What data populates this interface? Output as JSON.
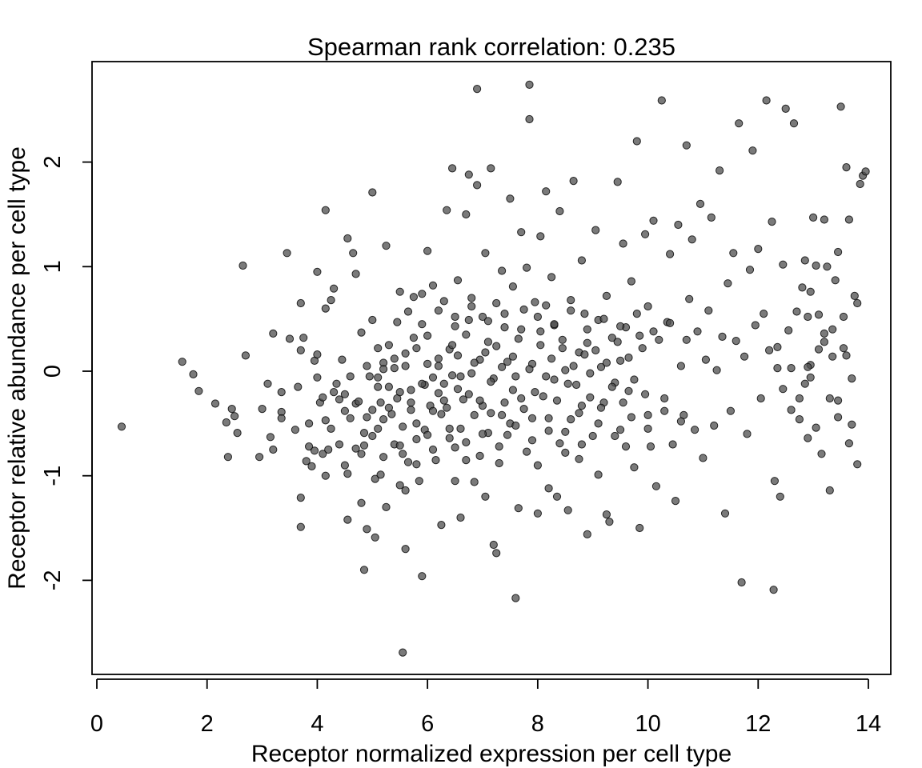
{
  "chart_data": {
    "type": "scatter",
    "title": "Spearman rank correlation: 0.235",
    "xlabel": "Receptor normalized expression per cell type",
    "ylabel": "Receptor relative abundance per cell type",
    "xlim": [
      0,
      14
    ],
    "ylim": [
      -2.75,
      2.85
    ],
    "xticks": [
      0,
      2,
      4,
      6,
      8,
      10,
      12,
      14
    ],
    "yticks": [
      -2,
      -1,
      0,
      1,
      2
    ],
    "grid": false,
    "legend": "none",
    "point_color": "#4d4d4d",
    "point_stroke": "#000000",
    "points": [
      [
        0.45,
        -0.53
      ],
      [
        1.55,
        0.09
      ],
      [
        1.75,
        -0.03
      ],
      [
        1.85,
        -0.19
      ],
      [
        2.15,
        -0.31
      ],
      [
        2.35,
        -0.49
      ],
      [
        2.38,
        -0.82
      ],
      [
        2.45,
        -0.36
      ],
      [
        2.5,
        -0.43
      ],
      [
        2.55,
        -0.59
      ],
      [
        2.65,
        1.01
      ],
      [
        2.7,
        0.15
      ],
      [
        2.95,
        -0.82
      ],
      [
        3.0,
        -0.36
      ],
      [
        3.1,
        -0.12
      ],
      [
        3.15,
        -0.63
      ],
      [
        3.2,
        0.36
      ],
      [
        3.2,
        -0.75
      ],
      [
        3.35,
        -0.39
      ],
      [
        3.35,
        -0.45
      ],
      [
        3.35,
        -0.2
      ],
      [
        3.45,
        1.13
      ],
      [
        3.5,
        0.31
      ],
      [
        3.6,
        -0.56
      ],
      [
        3.65,
        -0.15
      ],
      [
        3.7,
        0.2
      ],
      [
        3.7,
        0.65
      ],
      [
        3.7,
        -1.21
      ],
      [
        3.7,
        -1.49
      ],
      [
        3.75,
        0.32
      ],
      [
        3.8,
        -0.86
      ],
      [
        3.85,
        -0.72
      ],
      [
        3.85,
        -0.5
      ],
      [
        3.9,
        -0.91
      ],
      [
        3.95,
        0.1
      ],
      [
        3.95,
        -0.76
      ],
      [
        4.0,
        0.95
      ],
      [
        4.0,
        0.16
      ],
      [
        4.0,
        -0.06
      ],
      [
        4.05,
        -0.3
      ],
      [
        4.1,
        -0.25
      ],
      [
        4.1,
        -0.79
      ],
      [
        4.15,
        -0.47
      ],
      [
        4.15,
        0.6
      ],
      [
        4.15,
        -1.0
      ],
      [
        4.15,
        1.54
      ],
      [
        4.2,
        -0.75
      ],
      [
        4.25,
        0.68
      ],
      [
        4.3,
        0.79
      ],
      [
        4.35,
        -0.12
      ],
      [
        4.4,
        -0.27
      ],
      [
        4.4,
        -0.7
      ],
      [
        4.45,
        0.11
      ],
      [
        4.5,
        -0.22
      ],
      [
        4.5,
        -0.38
      ],
      [
        4.5,
        -0.9
      ],
      [
        4.55,
        -0.98
      ],
      [
        4.55,
        -1.42
      ],
      [
        4.55,
        1.27
      ],
      [
        4.6,
        -0.45
      ],
      [
        4.65,
        1.13
      ],
      [
        4.7,
        0.93
      ],
      [
        4.7,
        -0.31
      ],
      [
        4.7,
        -0.74
      ],
      [
        4.75,
        -0.29
      ],
      [
        4.8,
        -0.79
      ],
      [
        4.8,
        0.37
      ],
      [
        4.8,
        -1.26
      ],
      [
        4.85,
        -0.71
      ],
      [
        4.85,
        -0.59
      ],
      [
        4.85,
        -1.9
      ],
      [
        4.9,
        -1.51
      ],
      [
        4.9,
        -0.44
      ],
      [
        4.95,
        -0.05
      ],
      [
        5.0,
        0.49
      ],
      [
        5.0,
        -0.37
      ],
      [
        5.0,
        1.71
      ],
      [
        5.05,
        -1.03
      ],
      [
        5.05,
        -1.59
      ],
      [
        5.1,
        0.22
      ],
      [
        5.1,
        -0.06
      ],
      [
        5.1,
        -0.55
      ],
      [
        5.15,
        -0.99
      ],
      [
        5.15,
        -0.3
      ],
      [
        5.2,
        0.08
      ],
      [
        5.2,
        -0.46
      ],
      [
        5.2,
        -0.82
      ],
      [
        5.25,
        -1.3
      ],
      [
        5.25,
        1.2
      ],
      [
        5.3,
        0.25
      ],
      [
        5.3,
        -0.15
      ],
      [
        5.35,
        -0.41
      ],
      [
        5.4,
        -0.7
      ],
      [
        5.4,
        0.03
      ],
      [
        5.45,
        -0.26
      ],
      [
        5.45,
        0.47
      ],
      [
        5.5,
        -1.09
      ],
      [
        5.5,
        0.76
      ],
      [
        5.5,
        -0.71
      ],
      [
        5.55,
        -0.53
      ],
      [
        5.55,
        -0.79
      ],
      [
        5.55,
        -2.69
      ],
      [
        5.6,
        -1.7
      ],
      [
        5.6,
        -1.14
      ],
      [
        5.6,
        0.17
      ],
      [
        5.65,
        0.57
      ],
      [
        5.65,
        -0.87
      ],
      [
        5.7,
        -0.18
      ],
      [
        5.7,
        -0.37
      ],
      [
        5.75,
        0.71
      ],
      [
        5.75,
        0.32
      ],
      [
        5.8,
        -0.89
      ],
      [
        5.8,
        -0.5
      ],
      [
        5.85,
        -1.05
      ],
      [
        5.9,
        -1.96
      ],
      [
        5.9,
        0.74
      ],
      [
        5.95,
        -0.13
      ],
      [
        5.95,
        -0.56
      ],
      [
        6.0,
        1.15
      ],
      [
        6.0,
        0.34
      ],
      [
        6.0,
        -0.61
      ],
      [
        6.05,
        -0.33
      ],
      [
        6.1,
        -0.06
      ],
      [
        6.1,
        0.82
      ],
      [
        6.15,
        -0.85
      ],
      [
        6.2,
        0.12
      ],
      [
        6.2,
        -0.21
      ],
      [
        6.25,
        -0.41
      ],
      [
        6.25,
        -1.47
      ],
      [
        6.3,
        0.67
      ],
      [
        6.3,
        -0.28
      ],
      [
        6.35,
        1.54
      ],
      [
        6.4,
        -0.64
      ],
      [
        6.4,
        0.21
      ],
      [
        6.45,
        1.94
      ],
      [
        6.45,
        -0.04
      ],
      [
        6.5,
        -1.05
      ],
      [
        6.5,
        0.43
      ],
      [
        6.5,
        -0.73
      ],
      [
        6.55,
        0.87
      ],
      [
        6.55,
        -0.17
      ],
      [
        6.6,
        -0.55
      ],
      [
        6.6,
        -1.4
      ],
      [
        6.65,
        -0.27
      ],
      [
        6.7,
        1.5
      ],
      [
        6.7,
        -0.85
      ],
      [
        6.75,
        0.49
      ],
      [
        6.75,
        1.88
      ],
      [
        6.8,
        0.7
      ],
      [
        6.8,
        -0.02
      ],
      [
        6.85,
        -0.42
      ],
      [
        6.85,
        -1.06
      ],
      [
        6.9,
        1.78
      ],
      [
        6.9,
        2.7
      ],
      [
        6.95,
        -0.81
      ],
      [
        6.95,
        0.11
      ],
      [
        7.0,
        0.52
      ],
      [
        7.0,
        -0.33
      ],
      [
        7.05,
        1.13
      ],
      [
        7.05,
        -1.2
      ],
      [
        7.1,
        -0.59
      ],
      [
        7.1,
        0.28
      ],
      [
        7.15,
        1.94
      ],
      [
        7.15,
        -0.4
      ],
      [
        7.2,
        -0.07
      ],
      [
        7.2,
        -1.66
      ],
      [
        7.25,
        0.65
      ],
      [
        7.25,
        -1.74
      ],
      [
        7.3,
        -0.88
      ],
      [
        7.35,
        0.96
      ],
      [
        7.35,
        0.04
      ],
      [
        7.4,
        -0.3
      ],
      [
        7.4,
        0.42
      ],
      [
        7.45,
        -0.61
      ],
      [
        7.5,
        1.65
      ],
      [
        7.5,
        -0.5
      ],
      [
        7.55,
        0.14
      ],
      [
        7.55,
        0.81
      ],
      [
        7.6,
        -0.05
      ],
      [
        7.6,
        -2.17
      ],
      [
        7.65,
        -1.31
      ],
      [
        7.7,
        1.33
      ],
      [
        7.7,
        -0.26
      ],
      [
        7.75,
        0.59
      ],
      [
        7.8,
        -0.77
      ],
      [
        7.8,
        0.99
      ],
      [
        7.85,
        2.74
      ],
      [
        7.85,
        2.41
      ],
      [
        7.9,
        0.07
      ],
      [
        7.9,
        -0.45
      ],
      [
        7.95,
        0.66
      ],
      [
        8.0,
        -0.9
      ],
      [
        8.0,
        -1.36
      ],
      [
        8.05,
        1.29
      ],
      [
        8.05,
        0.25
      ],
      [
        8.1,
        -0.24
      ],
      [
        8.15,
        1.72
      ],
      [
        8.15,
        0.63
      ],
      [
        8.2,
        -0.57
      ],
      [
        8.2,
        -1.12
      ],
      [
        8.25,
        0.9
      ],
      [
        8.3,
        0.44
      ],
      [
        8.3,
        -0.08
      ],
      [
        8.35,
        -1.2
      ],
      [
        8.4,
        -0.69
      ],
      [
        8.4,
        1.53
      ],
      [
        8.45,
        0.3
      ],
      [
        8.5,
        -0.78
      ],
      [
        8.5,
        0.01
      ],
      [
        8.55,
        -1.33
      ],
      [
        8.6,
        0.68
      ],
      [
        8.6,
        -0.46
      ],
      [
        8.65,
        1.82
      ],
      [
        8.7,
        -0.13
      ],
      [
        8.75,
        0.18
      ],
      [
        8.75,
        -0.84
      ],
      [
        8.8,
        1.06
      ],
      [
        8.8,
        -0.33
      ],
      [
        8.85,
        0.55
      ],
      [
        8.9,
        -1.56
      ],
      [
        8.9,
        0.27
      ],
      [
        8.95,
        -0.02
      ],
      [
        9.0,
        -0.62
      ],
      [
        9.05,
        1.35
      ],
      [
        9.1,
        -0.99
      ],
      [
        9.1,
        0.49
      ],
      [
        9.15,
        0.04
      ],
      [
        9.2,
        -0.3
      ],
      [
        9.25,
        -1.37
      ],
      [
        9.25,
        0.72
      ],
      [
        9.3,
        -1.44
      ],
      [
        9.35,
        0.32
      ],
      [
        9.4,
        -0.11
      ],
      [
        9.45,
        1.81
      ],
      [
        9.5,
        -0.56
      ],
      [
        9.5,
        0.1
      ],
      [
        9.55,
        1.22
      ],
      [
        9.6,
        -0.72
      ],
      [
        9.6,
        0.42
      ],
      [
        9.65,
        -0.19
      ],
      [
        9.7,
        0.86
      ],
      [
        9.75,
        -0.92
      ],
      [
        9.8,
        2.2
      ],
      [
        9.85,
        -1.5
      ],
      [
        9.9,
        0.22
      ],
      [
        9.95,
        1.31
      ],
      [
        10.0,
        -0.42
      ],
      [
        10.0,
        0.62
      ],
      [
        10.05,
        -0.72
      ],
      [
        10.1,
        1.44
      ],
      [
        10.15,
        -1.1
      ],
      [
        10.2,
        0.3
      ],
      [
        10.25,
        2.59
      ],
      [
        10.3,
        -0.26
      ],
      [
        10.35,
        0.47
      ],
      [
        10.4,
        1.12
      ],
      [
        10.45,
        -0.7
      ],
      [
        10.5,
        -1.24
      ],
      [
        10.55,
        1.4
      ],
      [
        10.6,
        0.05
      ],
      [
        10.65,
        -0.42
      ],
      [
        10.7,
        2.16
      ],
      [
        10.75,
        0.69
      ],
      [
        10.8,
        1.26
      ],
      [
        10.85,
        -0.56
      ],
      [
        10.9,
        0.38
      ],
      [
        10.95,
        1.6
      ],
      [
        11.0,
        -0.83
      ],
      [
        11.05,
        0.11
      ],
      [
        11.1,
        0.58
      ],
      [
        11.15,
        1.47
      ],
      [
        11.2,
        -0.52
      ],
      [
        11.25,
        0.01
      ],
      [
        11.3,
        1.92
      ],
      [
        11.35,
        0.33
      ],
      [
        11.4,
        -1.36
      ],
      [
        11.45,
        0.84
      ],
      [
        11.5,
        -0.38
      ],
      [
        11.55,
        1.13
      ],
      [
        11.6,
        0.29
      ],
      [
        11.65,
        2.37
      ],
      [
        11.7,
        -2.02
      ],
      [
        11.75,
        0.14
      ],
      [
        11.8,
        -0.6
      ],
      [
        11.85,
        0.97
      ],
      [
        11.9,
        2.11
      ],
      [
        11.95,
        0.44
      ],
      [
        12.0,
        1.17
      ],
      [
        12.05,
        -0.26
      ],
      [
        12.1,
        0.55
      ],
      [
        12.15,
        2.59
      ],
      [
        12.2,
        0.2
      ],
      [
        12.25,
        1.43
      ],
      [
        12.3,
        -1.05
      ],
      [
        12.35,
        0.03
      ],
      [
        12.4,
        -1.2
      ],
      [
        12.45,
        1.02
      ],
      [
        12.5,
        2.51
      ],
      [
        12.55,
        0.39
      ],
      [
        12.6,
        -0.37
      ],
      [
        12.65,
        2.37
      ],
      [
        12.7,
        0.57
      ],
      [
        12.75,
        -0.26
      ],
      [
        12.8,
        0.8
      ],
      [
        12.85,
        1.06
      ],
      [
        12.9,
        0.52
      ],
      [
        12.95,
        -0.06
      ],
      [
        13.0,
        1.47
      ],
      [
        13.05,
        -0.54
      ],
      [
        13.1,
        0.54
      ],
      [
        13.15,
        -0.79
      ],
      [
        13.2,
        0.28
      ],
      [
        13.25,
        1.0
      ],
      [
        13.3,
        -1.14
      ],
      [
        13.35,
        0.14
      ],
      [
        13.4,
        0.87
      ],
      [
        13.45,
        -0.44
      ],
      [
        13.5,
        2.53
      ],
      [
        13.55,
        0.22
      ],
      [
        13.6,
        1.95
      ],
      [
        13.65,
        1.45
      ],
      [
        13.7,
        -0.51
      ],
      [
        13.75,
        0.72
      ],
      [
        13.8,
        -0.89
      ],
      [
        13.85,
        1.79
      ],
      [
        13.9,
        1.87
      ],
      [
        13.95,
        1.91
      ],
      [
        12.95,
        0.06
      ],
      [
        12.9,
        0.04
      ],
      [
        12.28,
        -2.09
      ],
      [
        12.35,
        0.23
      ],
      [
        12.45,
        -0.17
      ],
      [
        12.6,
        0.03
      ],
      [
        12.75,
        -0.46
      ],
      [
        12.85,
        -0.12
      ],
      [
        12.9,
        -0.64
      ],
      [
        13.05,
        1.01
      ],
      [
        13.2,
        0.36
      ],
      [
        13.3,
        -0.26
      ],
      [
        13.45,
        -0.28
      ],
      [
        13.55,
        0.52
      ],
      [
        13.6,
        0.15
      ],
      [
        13.65,
        -0.69
      ],
      [
        13.7,
        -0.07
      ],
      [
        13.8,
        0.65
      ],
      [
        12.95,
        0.76
      ],
      [
        13.1,
        0.21
      ],
      [
        13.2,
        1.45
      ],
      [
        13.35,
        0.4
      ],
      [
        13.45,
        1.14
      ],
      [
        6.2,
        0.05
      ],
      [
        6.3,
        -0.12
      ],
      [
        6.35,
        -0.35
      ],
      [
        6.45,
        0.25
      ],
      [
        6.55,
        0.15
      ],
      [
        6.6,
        -0.05
      ],
      [
        6.7,
        0.35
      ],
      [
        6.75,
        -0.22
      ],
      [
        6.85,
        0.08
      ],
      [
        6.95,
        -0.28
      ],
      [
        7.05,
        0.18
      ],
      [
        7.15,
        -0.1
      ],
      [
        7.25,
        0.24
      ],
      [
        7.35,
        -0.42
      ],
      [
        7.45,
        0.09
      ],
      [
        7.55,
        -0.18
      ],
      [
        7.65,
        0.31
      ],
      [
        7.75,
        -0.36
      ],
      [
        7.85,
        0.02
      ],
      [
        7.95,
        -0.2
      ],
      [
        8.05,
        0.38
      ],
      [
        8.15,
        -0.05
      ],
      [
        8.25,
        0.12
      ],
      [
        8.35,
        -0.28
      ],
      [
        8.45,
        0.22
      ],
      [
        8.55,
        -0.12
      ],
      [
        8.65,
        0.05
      ],
      [
        8.75,
        -0.4
      ],
      [
        8.85,
        0.16
      ],
      [
        8.95,
        -0.25
      ],
      [
        9.05,
        0.2
      ],
      [
        9.15,
        -0.35
      ],
      [
        9.25,
        0.08
      ],
      [
        9.35,
        -0.15
      ],
      [
        9.45,
        0.28
      ],
      [
        9.55,
        -0.3
      ],
      [
        9.65,
        0.13
      ],
      [
        9.75,
        -0.08
      ],
      [
        9.85,
        0.34
      ],
      [
        9.95,
        -0.22
      ],
      [
        5.6,
        0.05
      ],
      [
        5.7,
        -0.3
      ],
      [
        5.8,
        0.22
      ],
      [
        5.9,
        -0.12
      ],
      [
        6.0,
        0.07
      ],
      [
        6.1,
        -0.38
      ],
      [
        5.5,
        -0.2
      ],
      [
        5.4,
        0.12
      ],
      [
        5.3,
        -0.35
      ],
      [
        5.2,
        0.02
      ],
      [
        5.8,
        -0.65
      ],
      [
        6.1,
        -0.75
      ],
      [
        6.4,
        -0.55
      ],
      [
        6.7,
        -0.68
      ],
      [
        7.0,
        -0.6
      ],
      [
        7.3,
        -0.72
      ],
      [
        7.6,
        -0.52
      ],
      [
        7.9,
        -0.66
      ],
      [
        8.2,
        -0.45
      ],
      [
        8.5,
        -0.58
      ],
      [
        8.8,
        -0.7
      ],
      [
        9.1,
        -0.5
      ],
      [
        9.4,
        -0.62
      ],
      [
        9.7,
        -0.44
      ],
      [
        10.0,
        -0.55
      ],
      [
        10.3,
        -0.38
      ],
      [
        10.6,
        -0.48
      ],
      [
        5.9,
        0.45
      ],
      [
        6.2,
        0.58
      ],
      [
        6.5,
        0.52
      ],
      [
        6.8,
        0.62
      ],
      [
        7.1,
        0.48
      ],
      [
        7.4,
        0.55
      ],
      [
        7.7,
        0.4
      ],
      [
        8.0,
        0.52
      ],
      [
        8.3,
        0.45
      ],
      [
        8.6,
        0.58
      ],
      [
        8.9,
        0.4
      ],
      [
        9.2,
        0.5
      ],
      [
        9.5,
        0.43
      ],
      [
        9.8,
        0.55
      ],
      [
        10.1,
        0.38
      ],
      [
        10.4,
        0.46
      ],
      [
        10.7,
        0.3
      ],
      [
        5.1,
        -0.15
      ],
      [
        5.0,
        -0.62
      ],
      [
        4.9,
        0.05
      ],
      [
        4.6,
        -0.05
      ],
      [
        4.3,
        -0.2
      ],
      [
        4.25,
        -0.55
      ]
    ]
  }
}
